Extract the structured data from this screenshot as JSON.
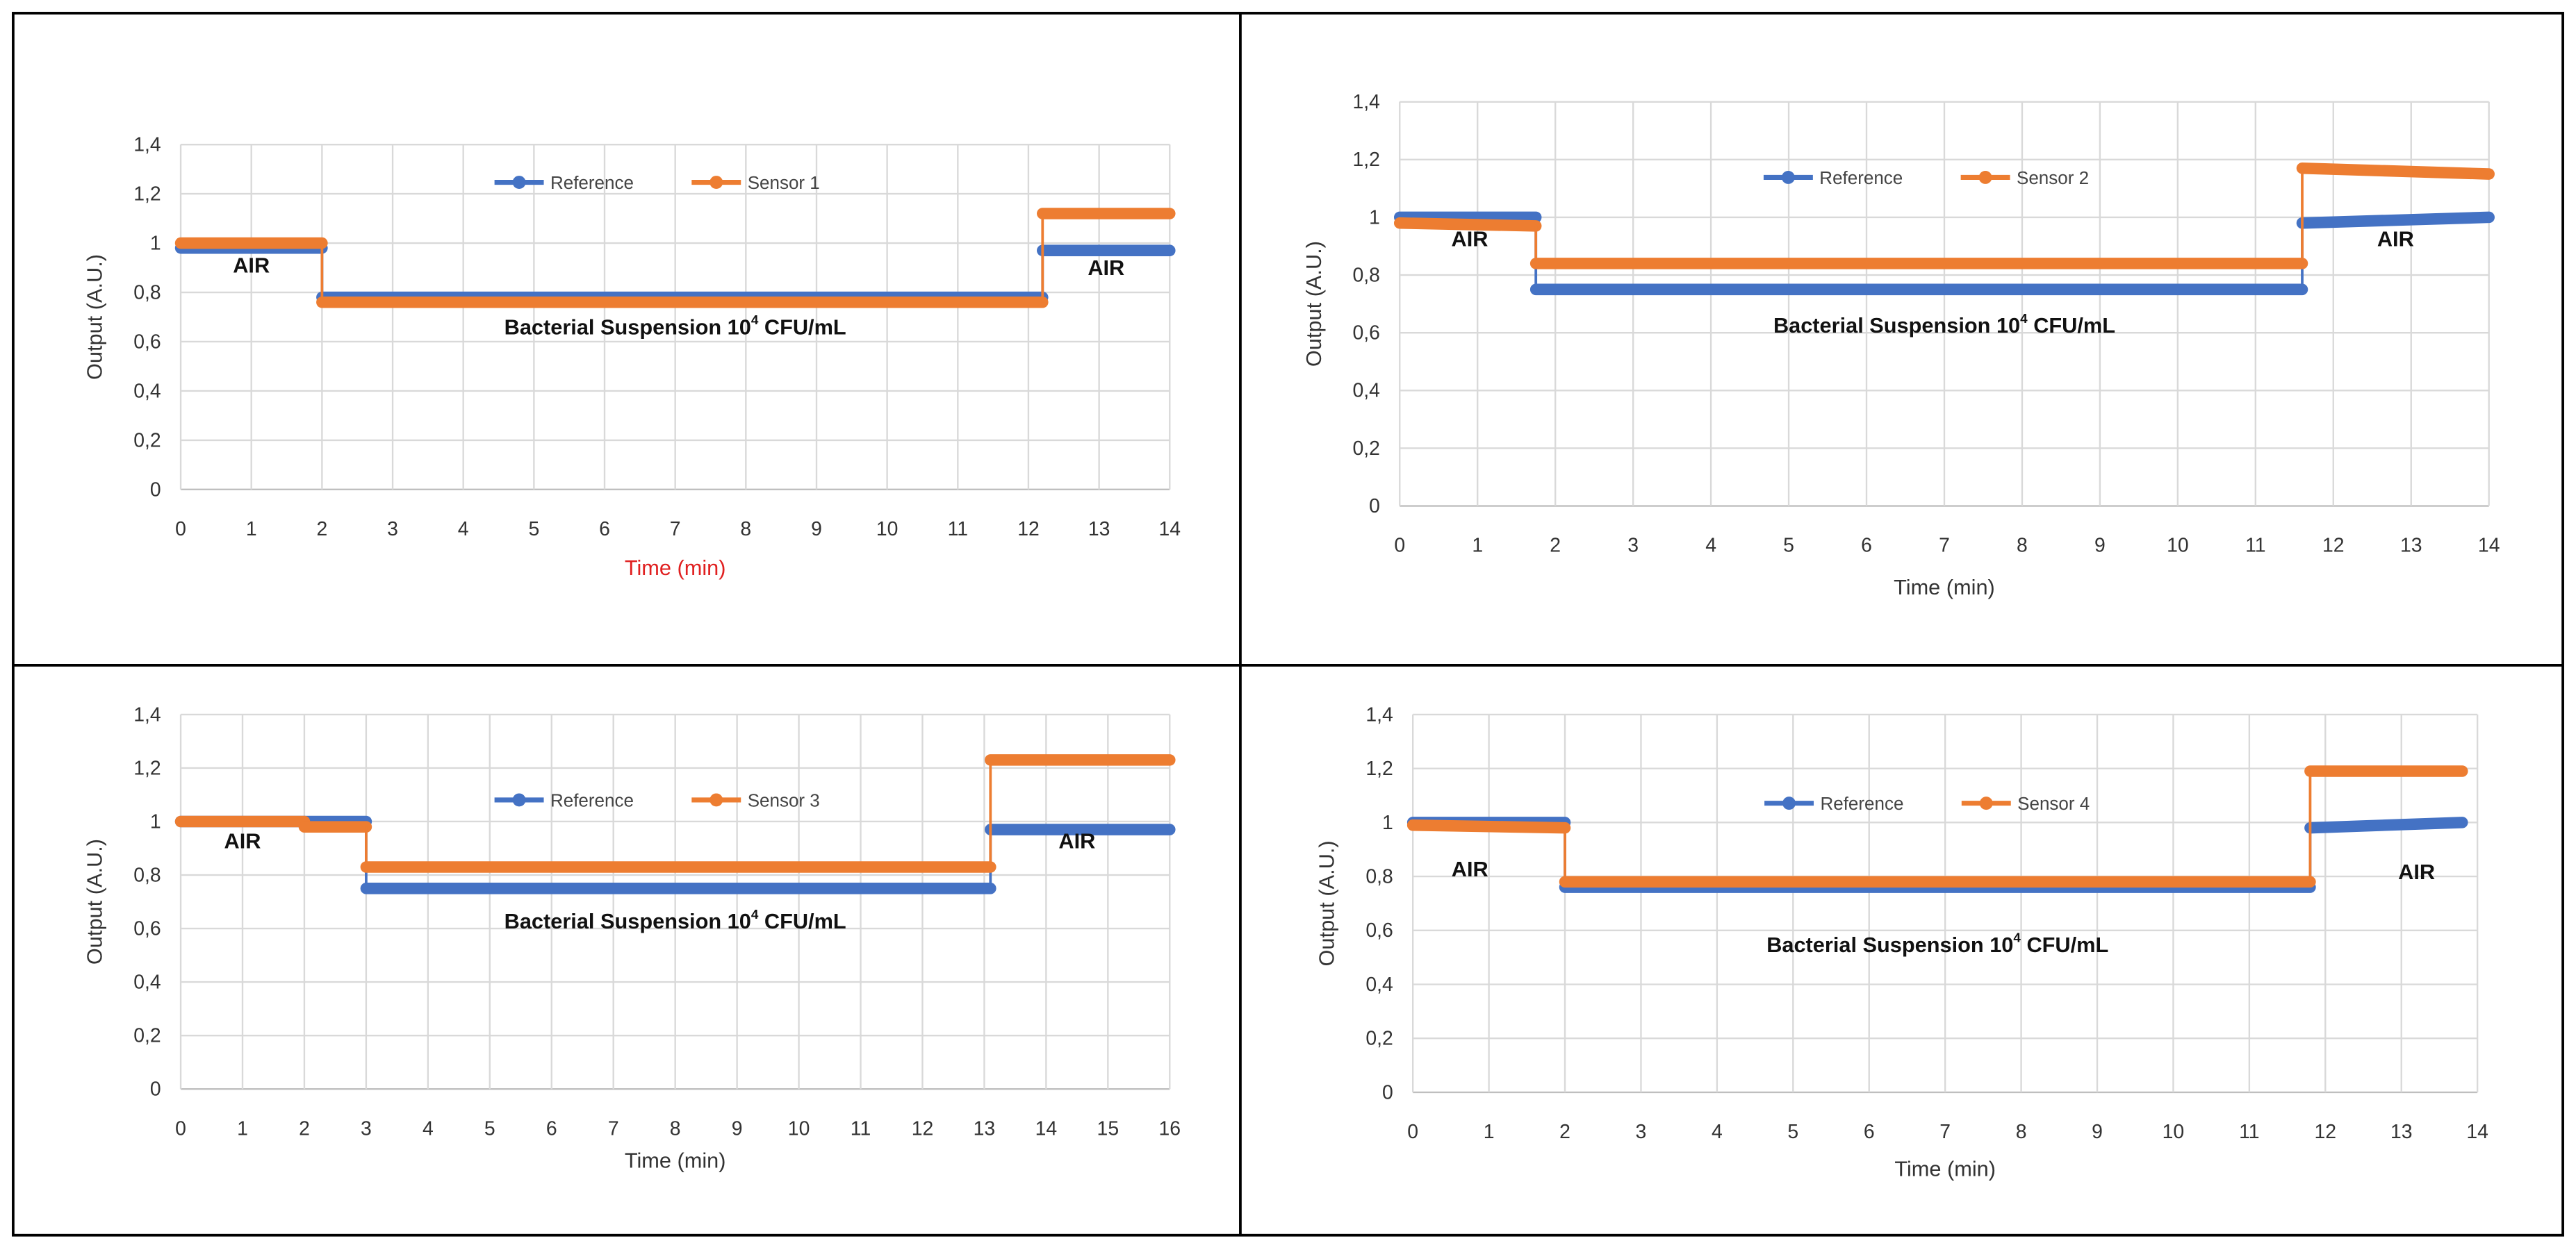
{
  "colors": {
    "reference": "#4472C4",
    "sensor": "#ED7D31",
    "grid": "#D9D9D9",
    "frame": "#000000",
    "red_label": "#E02020"
  },
  "chart_data": [
    {
      "type": "line",
      "title": "",
      "xlabel": "Time (min)",
      "xlabel_color": "#E02020",
      "ylabel": "Output (A.U.)",
      "xlim": [
        0,
        14
      ],
      "ylim": [
        0,
        1.4
      ],
      "xticks": [
        "0",
        "1",
        "2",
        "3",
        "4",
        "5",
        "6",
        "7",
        "8",
        "9",
        "10",
        "11",
        "12",
        "13",
        "14"
      ],
      "yticks": [
        "0",
        "0,2",
        "0,4",
        "0,6",
        "0,8",
        "1",
        "1,2",
        "1,4"
      ],
      "grid": true,
      "legend_position": "top-center",
      "series": [
        {
          "name": "Reference",
          "segments": [
            [
              0,
              2,
              0.98,
              0.98
            ],
            [
              2,
              12.2,
              0.78,
              0.78
            ],
            [
              12.2,
              14,
              0.97,
              0.97
            ]
          ]
        },
        {
          "name": "Sensor 1",
          "segments": [
            [
              0,
              2,
              1.0,
              1.0
            ],
            [
              2,
              12.2,
              0.76,
              0.76
            ],
            [
              12.2,
              14,
              1.12,
              1.12
            ]
          ]
        }
      ],
      "annotations": [
        {
          "text": "AIR",
          "x": 1.0,
          "y": 0.88
        },
        {
          "text": "AIR",
          "x": 13.1,
          "y": 0.87
        },
        {
          "text": "Bacterial Suspension 10",
          "sup": "4",
          "tail": " CFU/mL",
          "x": 7.0,
          "y": 0.63
        }
      ]
    },
    {
      "type": "line",
      "title": "",
      "xlabel": "Time (min)",
      "xlabel_color": "#333333",
      "ylabel": "Output (A.U.)",
      "xlim": [
        0,
        14
      ],
      "ylim": [
        0,
        1.4
      ],
      "xticks": [
        "0",
        "1",
        "2",
        "3",
        "4",
        "5",
        "6",
        "7",
        "8",
        "9",
        "10",
        "11",
        "12",
        "13",
        "14"
      ],
      "yticks": [
        "0",
        "0,2",
        "0,4",
        "0,6",
        "0,8",
        "1",
        "1,2",
        "1,4"
      ],
      "grid": true,
      "legend_position": "top-center",
      "series": [
        {
          "name": "Reference",
          "segments": [
            [
              0,
              1.75,
              1.0,
              1.0
            ],
            [
              1.75,
              11.6,
              0.75,
              0.75
            ],
            [
              11.6,
              14,
              0.98,
              1.0
            ]
          ]
        },
        {
          "name": "Sensor 2",
          "segments": [
            [
              0,
              1.75,
              0.98,
              0.97
            ],
            [
              1.75,
              11.6,
              0.84,
              0.84
            ],
            [
              11.6,
              14,
              1.17,
              1.15
            ]
          ]
        }
      ],
      "annotations": [
        {
          "text": "AIR",
          "x": 0.9,
          "y": 0.9
        },
        {
          "text": "AIR",
          "x": 12.8,
          "y": 0.9
        },
        {
          "text": "Bacterial Suspension 10",
          "sup": "4",
          "tail": " CFU/mL",
          "x": 7.0,
          "y": 0.6
        }
      ]
    },
    {
      "type": "line",
      "title": "",
      "xlabel": "Time (min)",
      "xlabel_color": "#333333",
      "ylabel": "Output (A.U.)",
      "xlim": [
        0,
        16
      ],
      "ylim": [
        0,
        1.4
      ],
      "xticks": [
        "0",
        "1",
        "2",
        "3",
        "4",
        "5",
        "6",
        "7",
        "8",
        "9",
        "10",
        "11",
        "12",
        "13",
        "14",
        "15",
        "16"
      ],
      "yticks": [
        "0",
        "0,2",
        "0,4",
        "0,6",
        "0,8",
        "1",
        "1,2",
        "1,4"
      ],
      "grid": true,
      "legend_position": "top-center",
      "series": [
        {
          "name": "Reference",
          "segments": [
            [
              0,
              3,
              1.0,
              1.0
            ],
            [
              3,
              13.1,
              0.75,
              0.75
            ],
            [
              13.1,
              16,
              0.97,
              0.97
            ]
          ]
        },
        {
          "name": "Sensor 3",
          "segments": [
            [
              0,
              2,
              1.0,
              1.0
            ],
            [
              2,
              3,
              0.98,
              0.98
            ],
            [
              3,
              13.1,
              0.83,
              0.83
            ],
            [
              13.1,
              16,
              1.23,
              1.23
            ]
          ]
        }
      ],
      "annotations": [
        {
          "text": "AIR",
          "x": 1.0,
          "y": 0.9
        },
        {
          "text": "AIR",
          "x": 14.5,
          "y": 0.9
        },
        {
          "text": "Bacterial Suspension 10",
          "sup": "4",
          "tail": " CFU/mL",
          "x": 8.0,
          "y": 0.6
        }
      ]
    },
    {
      "type": "line",
      "title": "",
      "xlabel": "Time (min)",
      "xlabel_color": "#333333",
      "ylabel": "Output (A.U.)",
      "xlim": [
        0,
        14
      ],
      "ylim": [
        0,
        1.4
      ],
      "xticks": [
        "0",
        "1",
        "2",
        "3",
        "4",
        "5",
        "6",
        "7",
        "8",
        "9",
        "10",
        "11",
        "12",
        "13",
        "14"
      ],
      "yticks": [
        "0",
        "0,2",
        "0,4",
        "0,6",
        "0,8",
        "1",
        "1,2",
        "1,4"
      ],
      "grid": true,
      "legend_position": "top-center",
      "series": [
        {
          "name": "Reference",
          "segments": [
            [
              0,
              2,
              1.0,
              1.0
            ],
            [
              2,
              11.8,
              0.76,
              0.76
            ],
            [
              11.8,
              13.8,
              0.98,
              1.0
            ]
          ]
        },
        {
          "name": "Sensor 4",
          "segments": [
            [
              0,
              2,
              0.99,
              0.98
            ],
            [
              2,
              11.8,
              0.78,
              0.78
            ],
            [
              11.8,
              13.8,
              1.19,
              1.19
            ]
          ]
        }
      ],
      "annotations": [
        {
          "text": "AIR",
          "x": 0.75,
          "y": 0.8
        },
        {
          "text": "AIR",
          "x": 13.2,
          "y": 0.79
        },
        {
          "text": "Bacterial Suspension 10",
          "sup": "4",
          "tail": " CFU/mL",
          "x": 6.9,
          "y": 0.52
        }
      ]
    }
  ]
}
